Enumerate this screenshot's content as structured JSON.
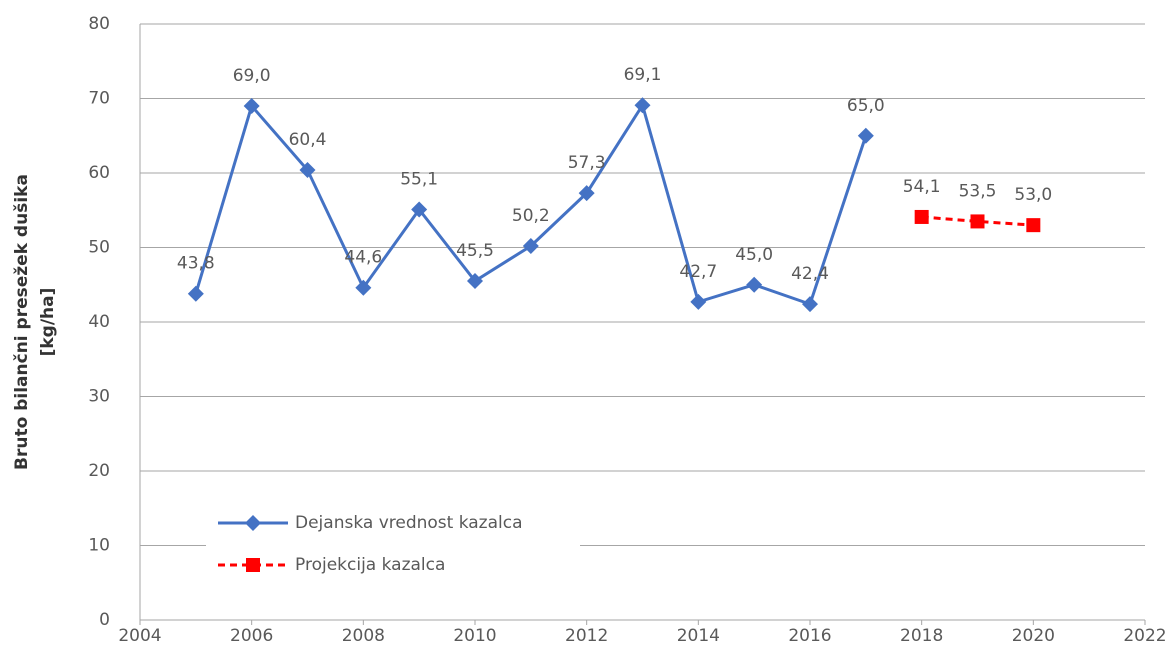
{
  "chart_data": {
    "type": "line",
    "ylabel": [
      "Bruto bilančni  presežek dušika",
      "[kg/ha]"
    ],
    "xlim": [
      2004,
      2022
    ],
    "xticks": [
      2004,
      2006,
      2008,
      2010,
      2012,
      2014,
      2016,
      2018,
      2020,
      2022
    ],
    "ylim": [
      0,
      80
    ],
    "yticks": [
      0,
      10,
      20,
      30,
      40,
      50,
      60,
      70,
      80
    ],
    "grid": true,
    "legend": "lower left",
    "series": [
      {
        "name": "Dejanska vrednost kazalca",
        "color": "#4472c4",
        "marker": "diamond",
        "dashed": false,
        "x": [
          2005,
          2006,
          2007,
          2008,
          2009,
          2010,
          2011,
          2012,
          2013,
          2014,
          2015,
          2016,
          2017
        ],
        "values": [
          43.8,
          69.0,
          60.4,
          44.6,
          55.1,
          45.5,
          50.2,
          57.3,
          69.1,
          42.7,
          45.0,
          42.4,
          65.0
        ],
        "value_labels": [
          "43,8",
          "69,0",
          "60,4",
          "44,6",
          "55,1",
          "45,5",
          "50,2",
          "57,3",
          "69,1",
          "42,7",
          "45,0",
          "42,4",
          "65,0"
        ]
      },
      {
        "name": "Projekcija kazalca",
        "color": "#ff0000",
        "marker": "square",
        "dashed": true,
        "x": [
          2018,
          2019,
          2020
        ],
        "values": [
          54.1,
          53.5,
          53.0
        ],
        "value_labels": [
          "54,1",
          "53,5",
          "53,0"
        ]
      }
    ]
  }
}
